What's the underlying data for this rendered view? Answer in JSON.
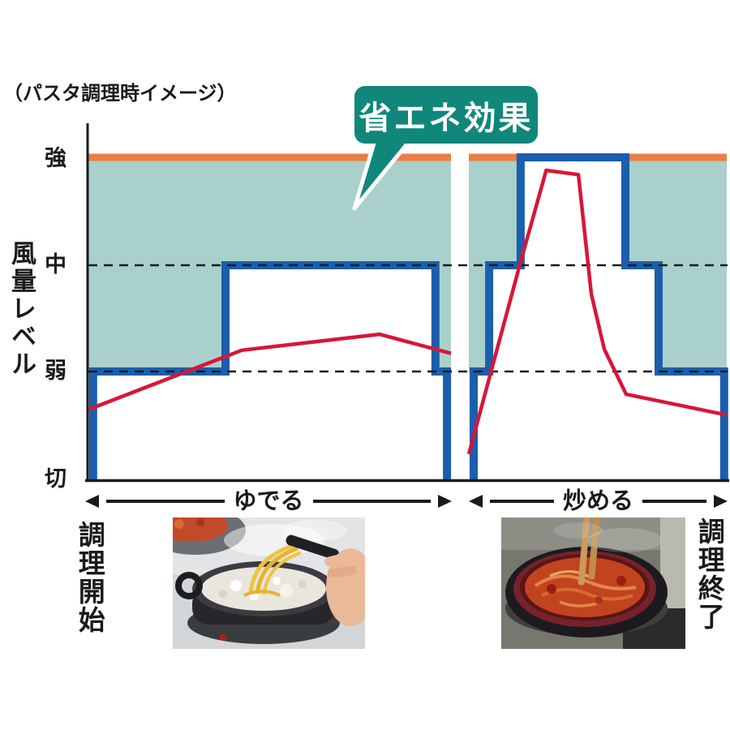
{
  "page_title": "（パスタ調理時イメージ）",
  "callout": {
    "label": "省エネ効果"
  },
  "y_axis": {
    "label": "風量レベル",
    "ticks": [
      "強",
      "中",
      "弱",
      "切"
    ]
  },
  "timeline": {
    "start_label": "調理開始",
    "end_label": "調理終了"
  },
  "photos": {
    "left": "boiling-pasta-pot-photo",
    "right": "stir-fry-pan-photo"
  },
  "colors": {
    "max_line_orange": "#EC7D44",
    "saving_fill_teal": "#A9D0CB",
    "fan_step_blue": "#1B5EAD",
    "heat_curve_red": "#D81638",
    "callout_teal": "#10877A",
    "axis_black": "#1A1A1A"
  },
  "chart_data": {
    "type": "line",
    "title": "（パスタ調理時イメージ）",
    "ylabel": "風量レベル",
    "y_levels": [
      {
        "level": 3,
        "label": "強"
      },
      {
        "level": 2,
        "label": "中"
      },
      {
        "level": 1,
        "label": "弱"
      },
      {
        "level": 0,
        "label": "切"
      }
    ],
    "max_level_line": {
      "level": 3
    },
    "dashed_guides": [
      2,
      1
    ],
    "x_unit": "fraction of phase duration",
    "panels": [
      {
        "phase": "ゆでる",
        "fan_steps_xy": [
          [
            0.013,
            0
          ],
          [
            0.013,
            1
          ],
          [
            0.378,
            1
          ],
          [
            0.378,
            2
          ],
          [
            0.957,
            2
          ],
          [
            0.957,
            1
          ],
          [
            0.989,
            1
          ],
          [
            0.989,
            0
          ]
        ],
        "saving_area_xy": [
          [
            0,
            3
          ],
          [
            1,
            3
          ],
          [
            1,
            1
          ],
          [
            0.957,
            1
          ],
          [
            0.957,
            2
          ],
          [
            0.378,
            2
          ],
          [
            0.378,
            1
          ],
          [
            0,
            1
          ]
        ],
        "heat_curve_xy": [
          [
            0,
            0.65
          ],
          [
            0.423,
            1.2
          ],
          [
            0.803,
            1.35
          ],
          [
            1,
            1.17
          ]
        ]
      },
      {
        "phase": "炒める",
        "fan_steps_xy": [
          [
            0.019,
            0
          ],
          [
            0.019,
            1
          ],
          [
            0.079,
            1
          ],
          [
            0.079,
            2
          ],
          [
            0.201,
            2
          ],
          [
            0.201,
            3
          ],
          [
            0.607,
            3
          ],
          [
            0.607,
            2
          ],
          [
            0.736,
            2
          ],
          [
            0.736,
            1
          ],
          [
            0.99,
            1
          ],
          [
            0.99,
            0
          ]
        ],
        "saving_area_xy": [
          [
            0,
            3
          ],
          [
            1,
            3
          ],
          [
            1,
            1
          ],
          [
            0.736,
            1
          ],
          [
            0.736,
            2
          ],
          [
            0.607,
            2
          ],
          [
            0.607,
            3
          ],
          [
            0.201,
            3
          ],
          [
            0.201,
            2
          ],
          [
            0.079,
            2
          ],
          [
            0.079,
            1
          ],
          [
            0,
            1
          ]
        ],
        "heat_curve_xy": [
          [
            0,
            0.24
          ],
          [
            0.195,
            1.98
          ],
          [
            0.3,
            2.88
          ],
          [
            0.425,
            2.84
          ],
          [
            0.475,
            1.73
          ],
          [
            0.525,
            1.21
          ],
          [
            0.61,
            0.79
          ],
          [
            1,
            0.6
          ]
        ]
      }
    ]
  }
}
